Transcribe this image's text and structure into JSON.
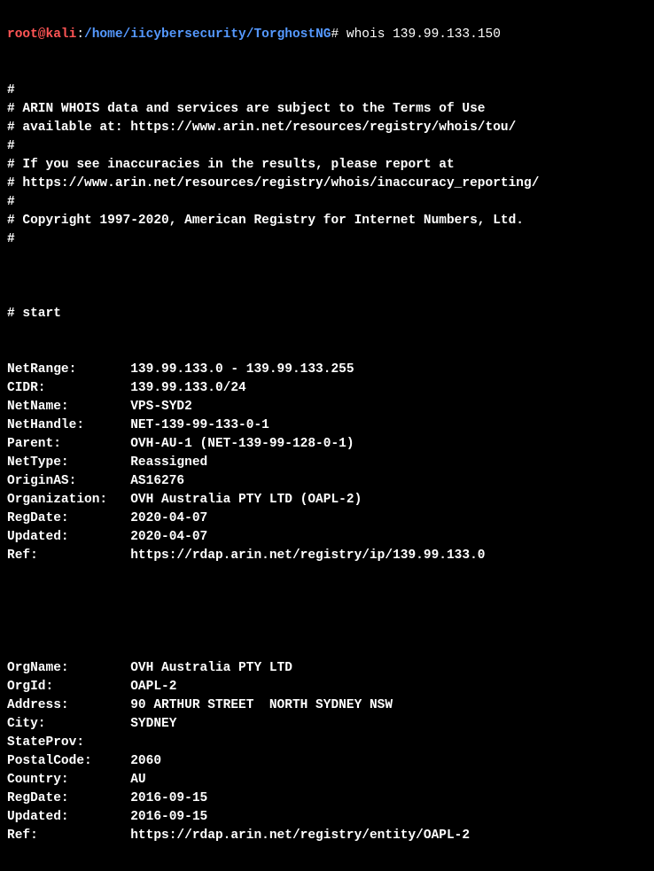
{
  "prompt": {
    "user_host": "root@kali",
    "colon": ":",
    "path": "/home/iicybersecurity/TorghostNG",
    "hash": "# ",
    "command": "whois 139.99.133.150"
  },
  "header": {
    "lines": [
      "",
      "#",
      "# ARIN WHOIS data and services are subject to the Terms of Use",
      "# available at: https://www.arin.net/resources/registry/whois/tou/",
      "#",
      "# If you see inaccuracies in the results, please report at",
      "# https://www.arin.net/resources/registry/whois/inaccuracy_reporting/",
      "#",
      "# Copyright 1997-2020, American Registry for Internet Numbers, Ltd.",
      "#",
      "",
      "",
      "",
      "# start",
      ""
    ]
  },
  "network": {
    "fields": [
      {
        "key": "NetRange:",
        "value": "139.99.133.0 - 139.99.133.255"
      },
      {
        "key": "CIDR:",
        "value": "139.99.133.0/24"
      },
      {
        "key": "NetName:",
        "value": "VPS-SYD2"
      },
      {
        "key": "NetHandle:",
        "value": "NET-139-99-133-0-1"
      },
      {
        "key": "Parent:",
        "value": "OVH-AU-1 (NET-139-99-128-0-1)"
      },
      {
        "key": "NetType:",
        "value": "Reassigned"
      },
      {
        "key": "OriginAS:",
        "value": "AS16276"
      },
      {
        "key": "Organization:",
        "value": "OVH Australia PTY LTD (OAPL-2)"
      },
      {
        "key": "RegDate:",
        "value": "2020-04-07"
      },
      {
        "key": "Updated:",
        "value": "2020-04-07"
      },
      {
        "key": "Ref:",
        "value": "https://rdap.arin.net/registry/ip/139.99.133.0"
      }
    ]
  },
  "org": {
    "fields": [
      {
        "key": "OrgName:",
        "value": "OVH Australia PTY LTD"
      },
      {
        "key": "OrgId:",
        "value": "OAPL-2"
      },
      {
        "key": "Address:",
        "value": "90 ARTHUR STREET  NORTH SYDNEY NSW"
      },
      {
        "key": "City:",
        "value": "SYDNEY"
      },
      {
        "key": "StateProv:",
        "value": ""
      },
      {
        "key": "PostalCode:",
        "value": "2060"
      },
      {
        "key": "Country:",
        "value": "AU"
      },
      {
        "key": "RegDate:",
        "value": "2016-09-15"
      },
      {
        "key": "Updated:",
        "value": "2016-09-15"
      },
      {
        "key": "Ref:",
        "value": "https://rdap.arin.net/registry/entity/OAPL-2"
      }
    ]
  },
  "style": {
    "key_col_width": 16
  }
}
